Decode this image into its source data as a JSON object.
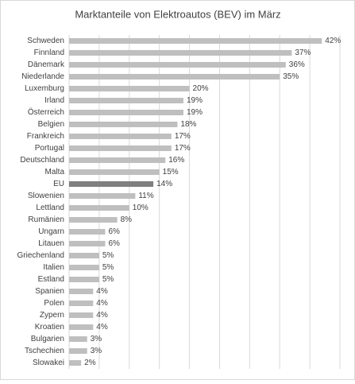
{
  "chart_data": {
    "type": "bar",
    "orientation": "horizontal",
    "title": "Marktanteile von Elektroautos (BEV) im März",
    "categories": [
      "Schweden",
      "Finnland",
      "Dänemark",
      "Niederlande",
      "Luxemburg",
      "Irland",
      "Österreich",
      "Belgien",
      "Frankreich",
      "Portugal",
      "Deutschland",
      "Malta",
      "EU",
      "Slowenien",
      "Lettland",
      "Rumänien",
      "Ungarn",
      "Litauen",
      "Griechenland",
      "Italien",
      "Estland",
      "Spanien",
      "Polen",
      "Zypern",
      "Kroatien",
      "Bulgarien",
      "Tschechien",
      "Slowakei"
    ],
    "values": [
      42,
      37,
      36,
      35,
      20,
      19,
      19,
      18,
      17,
      17,
      16,
      15,
      14,
      11,
      10,
      8,
      6,
      6,
      5,
      5,
      5,
      4,
      4,
      4,
      4,
      3,
      3,
      2
    ],
    "value_labels": [
      "42%",
      "37%",
      "36%",
      "35%",
      "20%",
      "19%",
      "19%",
      "18%",
      "17%",
      "17%",
      "16%",
      "15%",
      "14%",
      "11%",
      "10%",
      "8%",
      "6%",
      "6%",
      "5%",
      "5%",
      "5%",
      "4%",
      "4%",
      "4%",
      "4%",
      "3%",
      "3%",
      "2%"
    ],
    "colors": [
      "#bfbfbf",
      "#bfbfbf",
      "#bfbfbf",
      "#bfbfbf",
      "#bfbfbf",
      "#bfbfbf",
      "#bfbfbf",
      "#bfbfbf",
      "#bfbfbf",
      "#bfbfbf",
      "#bfbfbf",
      "#bfbfbf",
      "#7f7f7f",
      "#bfbfbf",
      "#bfbfbf",
      "#bfbfbf",
      "#bfbfbf",
      "#bfbfbf",
      "#bfbfbf",
      "#bfbfbf",
      "#bfbfbf",
      "#bfbfbf",
      "#bfbfbf",
      "#bfbfbf",
      "#bfbfbf",
      "#bfbfbf",
      "#bfbfbf",
      "#bfbfbf"
    ],
    "xlim": [
      0,
      45
    ],
    "xticks": [
      0,
      5,
      10,
      15,
      20,
      25,
      30,
      35,
      40,
      45
    ],
    "grid": true
  }
}
